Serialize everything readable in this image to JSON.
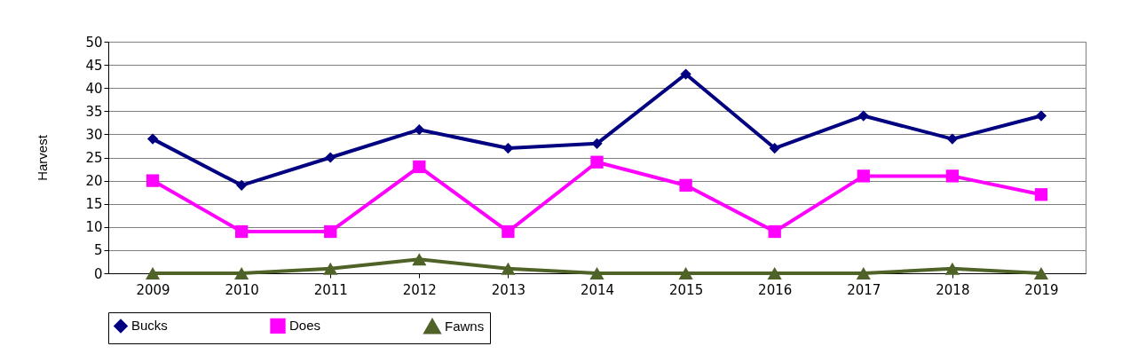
{
  "chart_data": {
    "type": "line",
    "ylabel": "Harvest",
    "categories": [
      "2009",
      "2010",
      "2011",
      "2012",
      "2013",
      "2014",
      "2015",
      "2016",
      "2017",
      "2018",
      "2019"
    ],
    "series": [
      {
        "name": "Bucks",
        "color": "#000080",
        "marker": "diamond",
        "values": [
          29,
          19,
          25,
          31,
          27,
          28,
          43,
          27,
          34,
          29,
          34
        ]
      },
      {
        "name": "Does",
        "color": "#ff00ff",
        "marker": "square",
        "values": [
          20,
          9,
          9,
          23,
          9,
          24,
          19,
          9,
          21,
          21,
          17
        ]
      },
      {
        "name": "Fawns",
        "color": "#4f6228",
        "marker": "triangle",
        "values": [
          0,
          0,
          1,
          3,
          1,
          0,
          0,
          0,
          0,
          1,
          0
        ]
      }
    ],
    "ylim": [
      0,
      50
    ],
    "yticks": [
      0,
      5,
      10,
      15,
      20,
      25,
      30,
      35,
      40,
      45,
      50
    ],
    "grid": "y",
    "legend": "bottom",
    "line_style": "solid"
  }
}
